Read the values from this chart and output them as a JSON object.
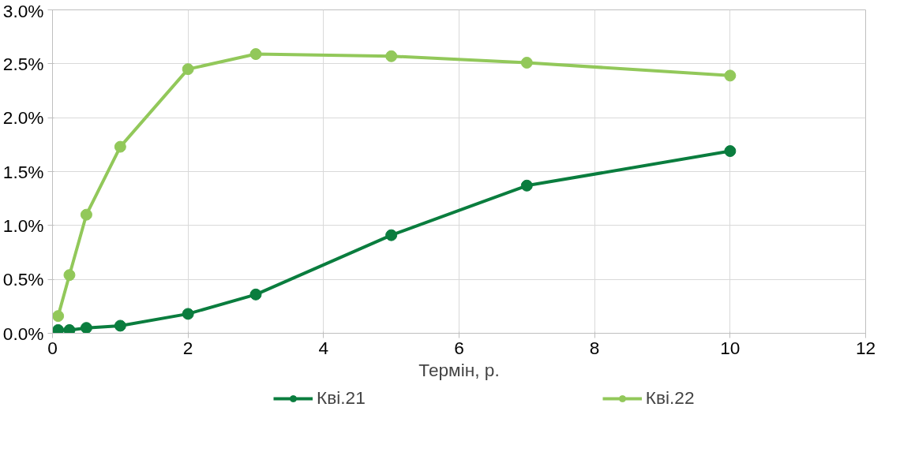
{
  "chart_data": {
    "type": "line",
    "xlabel": "Термін, р.",
    "x": [
      0.083,
      0.25,
      0.5,
      1,
      2,
      3,
      5,
      7,
      10
    ],
    "series": [
      {
        "name": "Кві.21",
        "color": "#0a7d3e",
        "values": [
          0.03,
          0.03,
          0.05,
          0.07,
          0.18,
          0.36,
          0.91,
          1.37,
          1.69
        ]
      },
      {
        "name": "Кві.22",
        "color": "#92c85a",
        "values": [
          0.16,
          0.54,
          1.1,
          1.73,
          2.45,
          2.59,
          2.57,
          2.51,
          2.39
        ]
      }
    ],
    "xlim": [
      0,
      12
    ],
    "xticks": [
      0,
      2,
      4,
      6,
      8,
      10,
      12
    ],
    "ylim": [
      0,
      3
    ],
    "yticks": [
      {
        "value": 0,
        "label": "0.0%"
      },
      {
        "value": 0.5,
        "label": "0.5%"
      },
      {
        "value": 1,
        "label": "1.0%"
      },
      {
        "value": 1.5,
        "label": "1.5%"
      },
      {
        "value": 2,
        "label": "2.0%"
      },
      {
        "value": 2.5,
        "label": "2.5%"
      },
      {
        "value": 3,
        "label": "3.0%"
      }
    ],
    "grid": true,
    "legend": "bottom",
    "marker": "circle",
    "line_style": "solid"
  }
}
